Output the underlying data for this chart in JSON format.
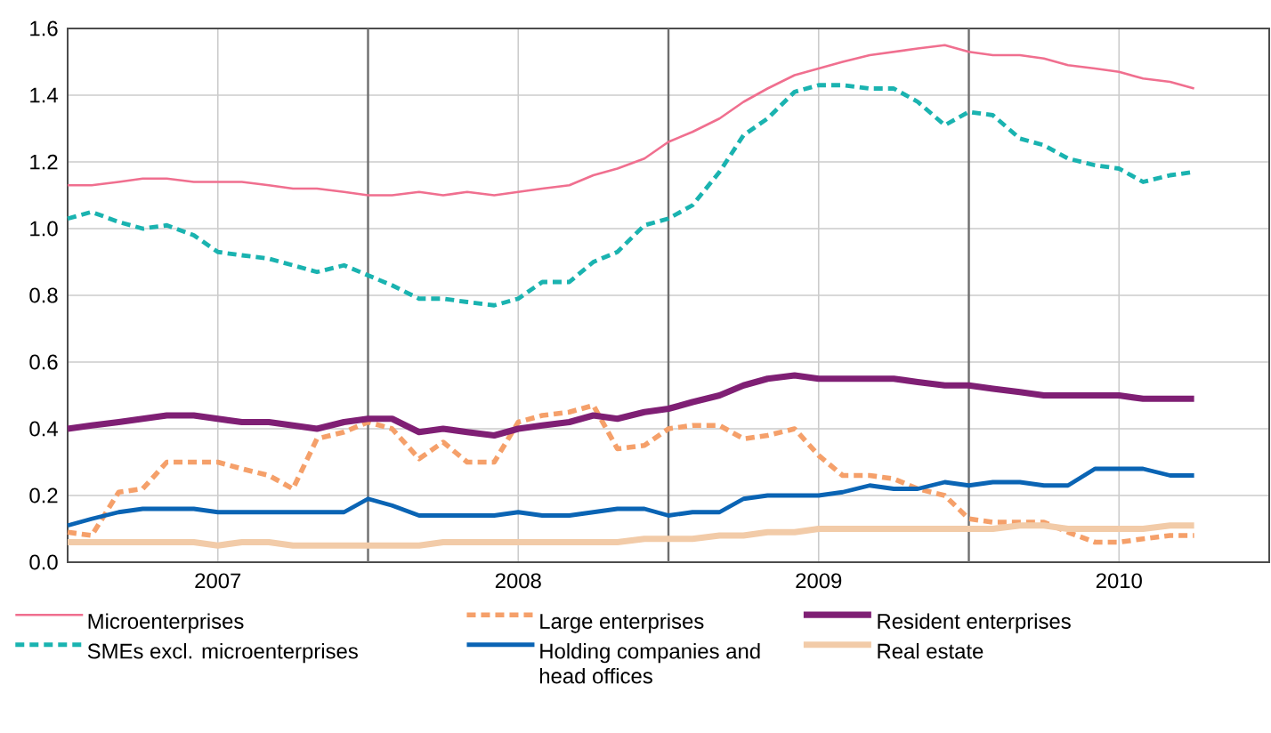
{
  "chart_data": {
    "type": "line",
    "x": [
      2007.0,
      2007.08,
      2007.17,
      2007.25,
      2007.33,
      2007.42,
      2007.5,
      2007.58,
      2007.67,
      2007.75,
      2007.83,
      2007.92,
      2008.0,
      2008.08,
      2008.17,
      2008.25,
      2008.33,
      2008.42,
      2008.5,
      2008.58,
      2008.67,
      2008.75,
      2008.83,
      2008.92,
      2009.0,
      2009.08,
      2009.17,
      2009.25,
      2009.33,
      2009.42,
      2009.5,
      2009.58,
      2009.67,
      2009.75,
      2009.83,
      2009.92,
      2010.0,
      2010.08,
      2010.17,
      2010.25,
      2010.33,
      2010.42,
      2010.5,
      2010.58,
      2010.67,
      2010.75
    ],
    "series": [
      {
        "name": "Microenterprises",
        "color": "#f06f8f",
        "line_style": "solid",
        "values": [
          1.13,
          1.13,
          1.14,
          1.15,
          1.15,
          1.14,
          1.14,
          1.14,
          1.13,
          1.12,
          1.12,
          1.11,
          1.1,
          1.1,
          1.11,
          1.1,
          1.11,
          1.1,
          1.11,
          1.12,
          1.13,
          1.16,
          1.18,
          1.21,
          1.26,
          1.29,
          1.33,
          1.38,
          1.42,
          1.46,
          1.48,
          1.5,
          1.52,
          1.53,
          1.54,
          1.55,
          1.53,
          1.52,
          1.52,
          1.51,
          1.49,
          1.48,
          1.47,
          1.45,
          1.44,
          1.42
        ]
      },
      {
        "name": "Large enterprises",
        "color": "#f5a06a",
        "line_style": "dashed",
        "values": [
          0.09,
          0.08,
          0.21,
          0.22,
          0.3,
          0.3,
          0.3,
          0.28,
          0.26,
          0.22,
          0.37,
          0.39,
          0.42,
          0.4,
          0.31,
          0.36,
          0.3,
          0.3,
          0.42,
          0.44,
          0.45,
          0.47,
          0.34,
          0.35,
          0.4,
          0.41,
          0.41,
          0.37,
          0.38,
          0.4,
          0.32,
          0.26,
          0.26,
          0.25,
          0.22,
          0.2,
          0.13,
          0.12,
          0.12,
          0.12,
          0.09,
          0.06,
          0.06,
          0.07,
          0.08,
          0.08
        ]
      },
      {
        "name": "Resident enterprises",
        "color": "#7f1f74",
        "line_style": "solid",
        "values": [
          0.4,
          0.41,
          0.42,
          0.43,
          0.44,
          0.44,
          0.43,
          0.42,
          0.42,
          0.41,
          0.4,
          0.42,
          0.43,
          0.43,
          0.39,
          0.4,
          0.39,
          0.38,
          0.4,
          0.41,
          0.42,
          0.44,
          0.43,
          0.45,
          0.46,
          0.48,
          0.5,
          0.53,
          0.55,
          0.56,
          0.55,
          0.55,
          0.55,
          0.55,
          0.54,
          0.53,
          0.53,
          0.52,
          0.51,
          0.5,
          0.5,
          0.5,
          0.5,
          0.49,
          0.49,
          0.49
        ]
      },
      {
        "name": "SMEs excl. microenterprises",
        "color": "#1ab3b0",
        "line_style": "dashed",
        "values": [
          1.03,
          1.05,
          1.02,
          1.0,
          1.01,
          0.98,
          0.93,
          0.92,
          0.91,
          0.89,
          0.87,
          0.89,
          0.86,
          0.83,
          0.79,
          0.79,
          0.78,
          0.77,
          0.79,
          0.84,
          0.84,
          0.9,
          0.93,
          1.01,
          1.03,
          1.07,
          1.17,
          1.28,
          1.33,
          1.41,
          1.43,
          1.43,
          1.42,
          1.42,
          1.38,
          1.31,
          1.35,
          1.34,
          1.27,
          1.25,
          1.21,
          1.19,
          1.18,
          1.14,
          1.16,
          1.17
        ]
      },
      {
        "name": "Holding companies and head offices",
        "color": "#0a64b4",
        "line_style": "solid",
        "values": [
          0.11,
          0.13,
          0.15,
          0.16,
          0.16,
          0.16,
          0.15,
          0.15,
          0.15,
          0.15,
          0.15,
          0.15,
          0.19,
          0.17,
          0.14,
          0.14,
          0.14,
          0.14,
          0.15,
          0.14,
          0.14,
          0.15,
          0.16,
          0.16,
          0.14,
          0.15,
          0.15,
          0.19,
          0.2,
          0.2,
          0.2,
          0.21,
          0.23,
          0.22,
          0.22,
          0.24,
          0.23,
          0.24,
          0.24,
          0.23,
          0.23,
          0.28,
          0.28,
          0.28,
          0.26,
          0.26
        ]
      },
      {
        "name": "Real estate",
        "color": "#f2cba8",
        "line_style": "solid",
        "values": [
          0.06,
          0.06,
          0.06,
          0.06,
          0.06,
          0.06,
          0.05,
          0.06,
          0.06,
          0.05,
          0.05,
          0.05,
          0.05,
          0.05,
          0.05,
          0.06,
          0.06,
          0.06,
          0.06,
          0.06,
          0.06,
          0.06,
          0.06,
          0.07,
          0.07,
          0.07,
          0.08,
          0.08,
          0.09,
          0.09,
          0.1,
          0.1,
          0.1,
          0.1,
          0.1,
          0.1,
          0.1,
          0.1,
          0.11,
          0.11,
          0.1,
          0.1,
          0.1,
          0.1,
          0.11,
          0.11
        ]
      }
    ],
    "xlim": [
      2007,
      2011
    ],
    "xticks": [
      {
        "value": 2007.5,
        "label": "2007"
      },
      {
        "value": 2008.5,
        "label": "2008"
      },
      {
        "value": 2009.5,
        "label": "2009"
      },
      {
        "value": 2010.5,
        "label": "2010"
      }
    ],
    "ylim": [
      0,
      1.6
    ],
    "yticks": [
      {
        "value": 0,
        "label": "0.0"
      },
      0.2,
      0.4,
      0.6,
      0.8,
      {
        "value": 1,
        "label": "1.0"
      },
      1.2,
      1.4,
      1.6
    ],
    "ref_lines": [
      {
        "axis": "x",
        "value": 2008,
        "color": "#6e6e6e"
      },
      {
        "axis": "x",
        "value": 2009,
        "color": "#6e6e6e"
      },
      {
        "axis": "x",
        "value": 2010,
        "color": "#6e6e6e"
      }
    ],
    "grid": true,
    "legend": "bottom",
    "marker": "none"
  }
}
